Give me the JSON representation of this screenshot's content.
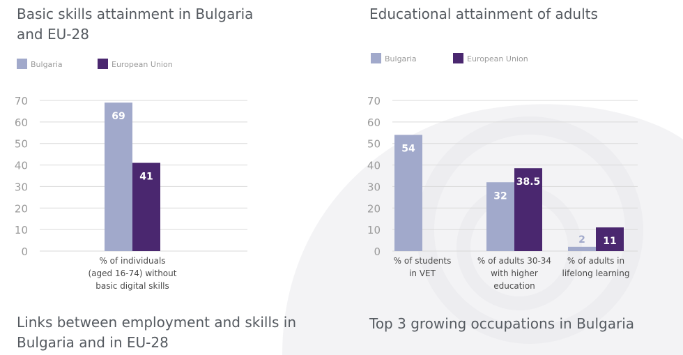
{
  "colors": {
    "bulgaria": "#a1a9cb",
    "eu": "#4a276f",
    "grid": "#d9d9d9",
    "axis_text": "#9a9a9a",
    "label_text": "#4a4a4a",
    "heading": "#555a60",
    "background_art": "#f3f3f5"
  },
  "headings": {
    "basic_skills": "Basic skills attainment in Bulgaria\nand EU-28",
    "educational": "Educational attainment of adults",
    "links": "Links between employment and skills in\nBulgaria and in EU-28",
    "top3": "Top 3 growing occupations in Bulgaria"
  },
  "chart_data": [
    {
      "type": "bar",
      "title": "Basic skills attainment in Bulgaria and EU-28",
      "categories": [
        "% of individuals\n(aged 16-74) without\nbasic digital skills"
      ],
      "series": [
        {
          "name": "Bulgaria",
          "values": [
            69
          ],
          "labels": [
            "69"
          ]
        },
        {
          "name": "European Union",
          "values": [
            41
          ],
          "labels": [
            "41"
          ]
        }
      ],
      "ylim": [
        0,
        70
      ],
      "yticks": [
        0,
        10,
        20,
        30,
        40,
        50,
        60,
        70
      ],
      "grid": true,
      "legend": "top-left"
    },
    {
      "type": "bar",
      "title": "Educational attainment of adults",
      "categories": [
        "% of students\nin VET",
        "% of adults 30-34\nwith higher\neducation",
        "% of adults in\nlifelong learning"
      ],
      "series": [
        {
          "name": "Bulgaria",
          "values": [
            54,
            32,
            2
          ],
          "labels": [
            "54",
            "32",
            "2"
          ]
        },
        {
          "name": "European Union",
          "values": [
            null,
            38.5,
            11
          ],
          "labels": [
            "",
            "38.5",
            "11"
          ]
        }
      ],
      "ylim": [
        0,
        70
      ],
      "yticks": [
        0,
        10,
        20,
        30,
        40,
        50,
        60,
        70
      ],
      "grid": true,
      "legend": "top-left"
    }
  ]
}
